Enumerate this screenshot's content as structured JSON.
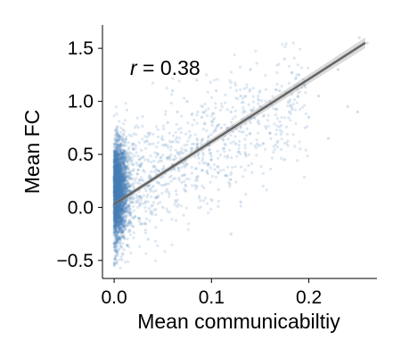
{
  "chart_data": {
    "type": "scatter",
    "xlabel": "Mean communicabiltiy",
    "ylabel": "Mean FC",
    "xlim": [
      -0.012,
      0.27
    ],
    "ylim": [
      -0.67,
      1.72
    ],
    "x_ticks": [
      0.0,
      0.1,
      0.2
    ],
    "x_tick_labels": [
      "0.0",
      "0.1",
      "0.2"
    ],
    "y_ticks": [
      -0.5,
      0.0,
      0.5,
      1.0,
      1.5
    ],
    "y_tick_labels": [
      "−0.5",
      "0.0",
      "0.5",
      "1.0",
      "1.5"
    ],
    "annotation": {
      "symbol": "r",
      "text": " = 0.38"
    },
    "regression": {
      "slope": 5.9,
      "intercept": 0.03,
      "x_range": [
        0.0,
        0.258
      ]
    },
    "point_color": "#4a7fb5",
    "line_color": "#666666",
    "grid": false,
    "legend": "none",
    "sample_points": [
      [
        0.005,
        0.2
      ],
      [
        0.01,
        0.4
      ],
      [
        0.015,
        0.1
      ],
      [
        0.02,
        0.6
      ],
      [
        0.025,
        -0.1
      ],
      [
        0.03,
        0.35
      ],
      [
        0.035,
        0.7
      ],
      [
        0.04,
        0.2
      ],
      [
        0.045,
        0.5
      ],
      [
        0.05,
        0.0
      ],
      [
        0.055,
        0.8
      ],
      [
        0.06,
        0.4
      ],
      [
        0.065,
        0.9
      ],
      [
        0.07,
        0.3
      ],
      [
        0.075,
        1.0
      ],
      [
        0.08,
        0.55
      ],
      [
        0.085,
        0.2
      ],
      [
        0.09,
        0.85
      ],
      [
        0.095,
        0.6
      ],
      [
        0.1,
        0.45
      ],
      [
        0.105,
        1.1
      ],
      [
        0.11,
        0.75
      ],
      [
        0.115,
        0.3
      ],
      [
        0.12,
        0.9
      ],
      [
        0.125,
        0.6
      ],
      [
        0.13,
        1.05
      ],
      [
        0.135,
        0.5
      ],
      [
        0.14,
        0.8
      ],
      [
        0.15,
        0.95
      ],
      [
        0.16,
        0.7
      ],
      [
        0.17,
        1.1
      ],
      [
        0.175,
        0.45
      ],
      [
        0.18,
        0.9
      ],
      [
        0.19,
        1.25
      ],
      [
        0.2,
        0.85
      ],
      [
        0.21,
        1.05
      ],
      [
        0.22,
        0.65
      ],
      [
        0.23,
        1.3
      ],
      [
        0.24,
        0.95
      ],
      [
        0.25,
        0.9
      ],
      [
        0.252,
        1.6
      ],
      [
        0.26,
        1.55
      ],
      [
        0.13,
        0.05
      ],
      [
        0.12,
        -0.25
      ],
      [
        0.175,
        1.4
      ],
      [
        0.16,
        1.0
      ],
      [
        0.14,
        1.3
      ],
      [
        0.035,
        -0.3
      ],
      [
        0.06,
        1.1
      ],
      [
        0.085,
        1.2
      ]
    ]
  }
}
